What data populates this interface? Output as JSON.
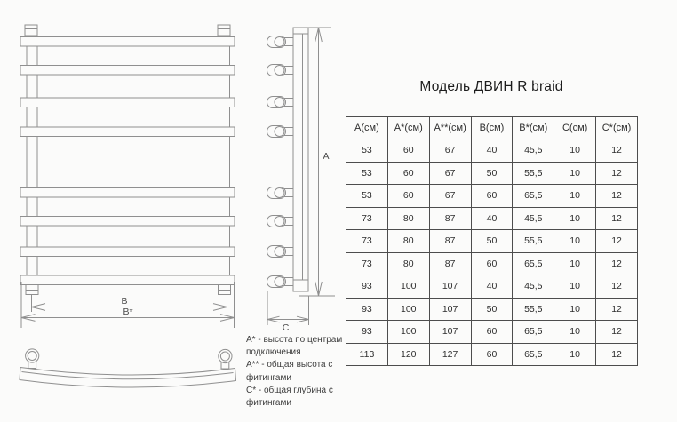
{
  "title": "Модель ДВИН R braid",
  "table": {
    "headers": [
      "А(см)",
      "А*(см)",
      "А**(см)",
      "В(см)",
      "В*(см)",
      "С(см)",
      "С*(см)"
    ],
    "rows": [
      [
        "53",
        "60",
        "67",
        "40",
        "45,5",
        "10",
        "12"
      ],
      [
        "53",
        "60",
        "67",
        "50",
        "55,5",
        "10",
        "12"
      ],
      [
        "53",
        "60",
        "67",
        "60",
        "65,5",
        "10",
        "12"
      ],
      [
        "73",
        "80",
        "87",
        "40",
        "45,5",
        "10",
        "12"
      ],
      [
        "73",
        "80",
        "87",
        "50",
        "55,5",
        "10",
        "12"
      ],
      [
        "73",
        "80",
        "87",
        "60",
        "65,5",
        "10",
        "12"
      ],
      [
        "93",
        "100",
        "107",
        "40",
        "45,5",
        "10",
        "12"
      ],
      [
        "93",
        "100",
        "107",
        "50",
        "55,5",
        "10",
        "12"
      ],
      [
        "93",
        "100",
        "107",
        "60",
        "65,5",
        "10",
        "12"
      ],
      [
        "113",
        "120",
        "127",
        "60",
        "65,5",
        "10",
        "12"
      ]
    ]
  },
  "legend": {
    "entries": [
      "А* - высота по центрам подключения",
      "А** - общая высота с фитингами",
      "С* - общая глубина с фитингами"
    ]
  },
  "diagram": {
    "dim_a": "А",
    "dim_b": "В",
    "dim_b_star": "В*",
    "dim_c": "С"
  },
  "colors": {
    "line": "#8f8f8f",
    "table_border": "#4d4d4d",
    "text": "#2e2e2e",
    "background": "#fbfbfa"
  }
}
